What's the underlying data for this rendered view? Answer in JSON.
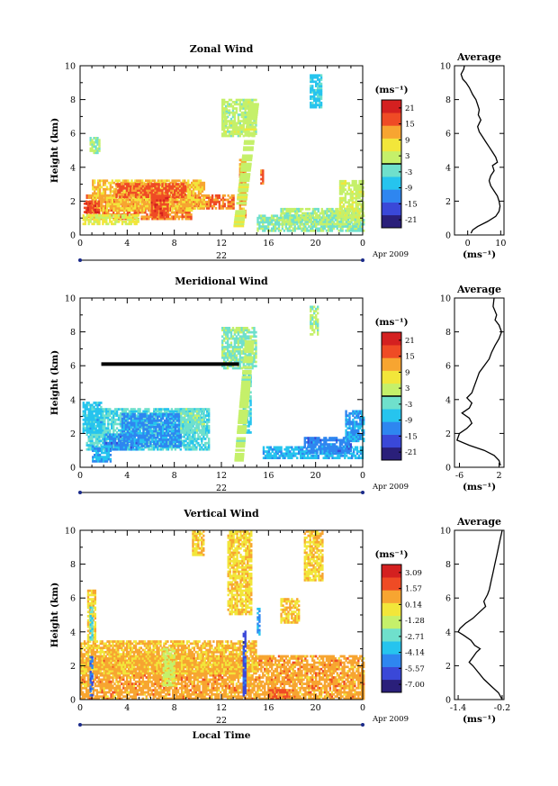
{
  "chart_data": [
    {
      "type": "heatmap",
      "title": "Zonal Wind",
      "ylabel": "Height (km)",
      "ylim": [
        0,
        10
      ],
      "yticks": [
        0,
        2,
        4,
        6,
        8,
        10
      ],
      "xtick_labels": [
        "0",
        "4",
        "8",
        "12",
        "16",
        "20",
        "0"
      ],
      "date_day": "22",
      "date_month_year": "Apr 2009",
      "colorbar": {
        "unit_label": "(ms⁻¹)",
        "range": [
          -24,
          24
        ],
        "ticks": [
          "21",
          "15",
          "9",
          "3",
          "-3",
          "-9",
          "-15",
          "-21"
        ],
        "zero_line": true
      },
      "profile": {
        "title": "Average",
        "xlabel": "(ms⁻¹)",
        "xlim": [
          -4,
          11
        ],
        "xtick_labels": [
          "0",
          "10"
        ],
        "xtick_values": [
          0,
          10
        ],
        "ylim": [
          0,
          10
        ],
        "yticks": [
          0,
          2,
          4,
          6,
          8,
          10
        ],
        "points": [
          [
            -1.0,
            10.0
          ],
          [
            -1.2,
            9.8
          ],
          [
            -2.0,
            9.5
          ],
          [
            -1.5,
            9.2
          ],
          [
            -0.5,
            9.0
          ],
          [
            0.5,
            8.7
          ],
          [
            1.5,
            8.3
          ],
          [
            2.5,
            8.0
          ],
          [
            3.0,
            7.7
          ],
          [
            3.5,
            7.4
          ],
          [
            3.2,
            7.1
          ],
          [
            4.0,
            6.8
          ],
          [
            3.0,
            6.4
          ],
          [
            3.5,
            6.1
          ],
          [
            4.5,
            5.8
          ],
          [
            5.5,
            5.5
          ],
          [
            6.5,
            5.2
          ],
          [
            7.5,
            4.9
          ],
          [
            8.5,
            4.6
          ],
          [
            9.0,
            4.3
          ],
          [
            7.5,
            4.1
          ],
          [
            8.0,
            3.8
          ],
          [
            7.0,
            3.5
          ],
          [
            6.5,
            3.2
          ],
          [
            7.0,
            2.9
          ],
          [
            8.0,
            2.6
          ],
          [
            9.0,
            2.3
          ],
          [
            9.5,
            2.0
          ],
          [
            9.8,
            1.7
          ],
          [
            9.5,
            1.4
          ],
          [
            8.5,
            1.1
          ],
          [
            6.0,
            0.8
          ],
          [
            3.0,
            0.5
          ],
          [
            1.5,
            0.3
          ],
          [
            1.0,
            0.1
          ]
        ]
      },
      "regions": [
        {
          "t0": 0.5,
          "t1": 13.0,
          "h0": 0.9,
          "h1": 2.3,
          "v": 14
        },
        {
          "t0": 1.0,
          "t1": 10.5,
          "h0": 1.4,
          "h1": 3.2,
          "v": 10
        },
        {
          "t0": 3.0,
          "t1": 9.0,
          "h0": 2.2,
          "h1": 3.0,
          "v": 16
        },
        {
          "t0": 0.2,
          "t1": 5.0,
          "h0": 0.6,
          "h1": 1.2,
          "v": 5
        },
        {
          "t0": 0.3,
          "t1": 1.5,
          "h0": 1.3,
          "h1": 2.0,
          "v": 18
        },
        {
          "t0": 6.0,
          "t1": 7.5,
          "h0": 1.0,
          "h1": 2.3,
          "v": 17
        },
        {
          "t0": 0.8,
          "t1": 1.6,
          "h0": 4.8,
          "h1": 5.8,
          "v": 0
        },
        {
          "t0": 12.0,
          "t1": 15.0,
          "h0": 5.8,
          "h1": 8.0,
          "v": 2
        },
        {
          "t0": 15.0,
          "t1": 24.0,
          "h0": 0.2,
          "h1": 1.2,
          "v": -1
        },
        {
          "t0": 17.0,
          "t1": 24.0,
          "h0": 0.6,
          "h1": 1.6,
          "v": 1
        },
        {
          "t0": 22.0,
          "t1": 24.0,
          "h0": 1.0,
          "h1": 3.2,
          "v": 3
        },
        {
          "t0": 19.5,
          "t1": 20.5,
          "h0": 7.5,
          "h1": 9.5,
          "v": -6
        },
        {
          "t0": 12.2,
          "t1": 12.5,
          "h0": 6.5,
          "h1": 7.4,
          "v": 2
        },
        {
          "t0": 13.5,
          "t1": 14.0,
          "h0": 1.0,
          "h1": 4.5,
          "v": 12
        },
        {
          "t0": 15.3,
          "t1": 15.6,
          "h0": 3.0,
          "h1": 3.8,
          "v": 15
        }
      ],
      "bands": [
        {
          "t0": 13.0,
          "h0": 0.5,
          "t1": 14.3,
          "h1": 7.8,
          "w": 0.9,
          "v": 3
        }
      ],
      "blank": [
        {
          "t0": 9.5,
          "t1": 13.0,
          "h0": 0.9,
          "h1": 1.4
        }
      ]
    },
    {
      "type": "heatmap",
      "title": "Meridional Wind",
      "ylabel": "Height (km)",
      "ylim": [
        0,
        10
      ],
      "yticks": [
        0,
        2,
        4,
        6,
        8,
        10
      ],
      "xtick_labels": [
        "0",
        "4",
        "8",
        "12",
        "16",
        "20",
        "0"
      ],
      "date_day": "22",
      "date_month_year": "Apr 2009",
      "colorbar": {
        "unit_label": "(ms⁻¹)",
        "range": [
          -24,
          24
        ],
        "ticks": [
          "21",
          "15",
          "9",
          "3",
          "-3",
          "-9",
          "-15",
          "-21"
        ],
        "zero_line": true
      },
      "profile": {
        "title": "Average",
        "xlabel": "(ms⁻¹)",
        "xlim": [
          -7,
          3
        ],
        "xtick_labels": [
          "-6",
          "2"
        ],
        "xtick_values": [
          -6,
          2
        ],
        "ylim": [
          0,
          10
        ],
        "yticks": [
          0,
          2,
          4,
          6,
          8,
          10
        ],
        "points": [
          [
            1.0,
            10.0
          ],
          [
            0.8,
            9.5
          ],
          [
            1.5,
            9.0
          ],
          [
            1.2,
            8.7
          ],
          [
            2.0,
            8.4
          ],
          [
            2.5,
            8.0
          ],
          [
            2.0,
            7.6
          ],
          [
            1.2,
            7.2
          ],
          [
            0.5,
            6.8
          ],
          [
            0.0,
            6.4
          ],
          [
            -1.0,
            6.0
          ],
          [
            -2.0,
            5.6
          ],
          [
            -2.5,
            5.2
          ],
          [
            -3.0,
            4.8
          ],
          [
            -3.5,
            4.4
          ],
          [
            -4.5,
            4.1
          ],
          [
            -3.5,
            3.8
          ],
          [
            -4.0,
            3.5
          ],
          [
            -5.5,
            3.2
          ],
          [
            -4.0,
            2.9
          ],
          [
            -3.5,
            2.6
          ],
          [
            -4.5,
            2.3
          ],
          [
            -6.0,
            2.0
          ],
          [
            -6.5,
            1.6
          ],
          [
            -4.0,
            1.3
          ],
          [
            -1.0,
            1.0
          ],
          [
            1.0,
            0.7
          ],
          [
            2.0,
            0.4
          ],
          [
            2.3,
            0.1
          ]
        ]
      },
      "regions": [
        {
          "t0": 0.5,
          "t1": 11.0,
          "h0": 1.0,
          "h1": 3.5,
          "v": -4
        },
        {
          "t0": 3.5,
          "t1": 8.5,
          "h0": 1.2,
          "h1": 3.2,
          "v": -11
        },
        {
          "t0": 2.0,
          "t1": 5.0,
          "h0": 1.0,
          "h1": 2.0,
          "v": -12
        },
        {
          "t0": 0.2,
          "t1": 1.8,
          "h0": 2.0,
          "h1": 3.8,
          "v": -7
        },
        {
          "t0": 1.0,
          "t1": 2.5,
          "h0": 0.3,
          "h1": 1.2,
          "v": -9
        },
        {
          "t0": 8.5,
          "t1": 10.5,
          "h0": 2.0,
          "h1": 3.4,
          "v": -2
        },
        {
          "t0": 12.0,
          "t1": 15.0,
          "h0": 5.8,
          "h1": 8.2,
          "v": -1
        },
        {
          "t0": 15.5,
          "t1": 24.0,
          "h0": 0.5,
          "h1": 1.2,
          "v": -8
        },
        {
          "t0": 19.0,
          "t1": 23.0,
          "h0": 0.8,
          "h1": 1.8,
          "v": -12
        },
        {
          "t0": 22.5,
          "t1": 24.0,
          "h0": 1.5,
          "h1": 3.3,
          "v": -10
        },
        {
          "t0": 19.5,
          "t1": 20.2,
          "h0": 7.8,
          "h1": 9.5,
          "v": 1
        },
        {
          "t0": 13.8,
          "t1": 14.5,
          "h0": 2.0,
          "h1": 5.5,
          "v": -5
        }
      ],
      "bands": [
        {
          "t0": 13.1,
          "h0": 0.5,
          "t1": 14.0,
          "h1": 7.5,
          "w": 0.8,
          "v": 2
        }
      ],
      "blank": [],
      "line": {
        "t0": 1.8,
        "t1": 13.5,
        "h": 6.1
      }
    },
    {
      "type": "heatmap",
      "title": "Vertical Wind",
      "ylabel": "Height (km)",
      "xlabel": "Local Time",
      "ylim": [
        0,
        10
      ],
      "yticks": [
        0,
        2,
        4,
        6,
        8,
        10
      ],
      "xtick_labels": [
        "0",
        "4",
        "8",
        "12",
        "16",
        "20",
        "0"
      ],
      "date_day": "22",
      "date_month_year": "Apr 2009",
      "colorbar": {
        "unit_label": "(ms⁻¹)",
        "range": [
          -7.8,
          3.8
        ],
        "ticks": [
          "3.09",
          "1.57",
          "0.14",
          "-1.28",
          "-2.71",
          "-4.14",
          "-5.57",
          "-7.00"
        ],
        "zero_line": false
      },
      "profile": {
        "title": "Average",
        "xlabel": "(ms⁻¹)",
        "xlim": [
          -1.5,
          -0.15
        ],
        "xtick_labels": [
          "-1.4",
          "-0.2"
        ],
        "xtick_values": [
          -1.4,
          -0.2
        ],
        "ylim": [
          0,
          10
        ],
        "yticks": [
          0,
          2,
          4,
          6,
          8,
          10
        ],
        "points": [
          [
            -0.2,
            10.0
          ],
          [
            -0.25,
            9.5
          ],
          [
            -0.3,
            9.0
          ],
          [
            -0.35,
            8.5
          ],
          [
            -0.4,
            8.0
          ],
          [
            -0.45,
            7.5
          ],
          [
            -0.5,
            7.0
          ],
          [
            -0.55,
            6.5
          ],
          [
            -0.6,
            6.2
          ],
          [
            -0.7,
            5.8
          ],
          [
            -0.65,
            5.5
          ],
          [
            -0.8,
            5.2
          ],
          [
            -1.0,
            4.8
          ],
          [
            -1.2,
            4.5
          ],
          [
            -1.35,
            4.2
          ],
          [
            -1.4,
            4.0
          ],
          [
            -1.25,
            3.8
          ],
          [
            -1.05,
            3.5
          ],
          [
            -0.95,
            3.2
          ],
          [
            -0.8,
            3.0
          ],
          [
            -0.9,
            2.8
          ],
          [
            -1.0,
            2.5
          ],
          [
            -1.1,
            2.2
          ],
          [
            -1.0,
            2.0
          ],
          [
            -0.85,
            1.6
          ],
          [
            -0.7,
            1.2
          ],
          [
            -0.5,
            0.8
          ],
          [
            -0.3,
            0.4
          ],
          [
            -0.2,
            0.0
          ]
        ]
      },
      "regions": [
        {
          "t0": 0.0,
          "t1": 24.0,
          "h0": 0.0,
          "h1": 2.6,
          "v": 0.9
        },
        {
          "t0": 0.0,
          "t1": 15.0,
          "h0": 1.5,
          "h1": 3.4,
          "v": 0.5
        },
        {
          "t0": 0.6,
          "t1": 1.3,
          "h0": 3.0,
          "h1": 6.5,
          "v": 0.0
        },
        {
          "t0": 12.5,
          "t1": 14.5,
          "h0": 5.0,
          "h1": 10.0,
          "v": 0.1
        },
        {
          "t0": 19.0,
          "t1": 20.5,
          "h0": 7.0,
          "h1": 10.0,
          "v": 0.2
        },
        {
          "t0": 9.5,
          "t1": 10.5,
          "h0": 8.5,
          "h1": 10.0,
          "v": 0.3
        },
        {
          "t0": 17.0,
          "t1": 18.5,
          "h0": 4.5,
          "h1": 6.0,
          "v": 0.3
        },
        {
          "t0": 7.0,
          "t1": 8.0,
          "h0": 0.8,
          "h1": 3.0,
          "v": -1.2
        },
        {
          "t0": 0.8,
          "t1": 1.1,
          "h0": 0.2,
          "h1": 2.5,
          "v": -5.5
        },
        {
          "t0": 0.8,
          "t1": 1.1,
          "h0": 3.5,
          "h1": 5.5,
          "v": -3.0
        },
        {
          "t0": 13.8,
          "t1": 14.1,
          "h0": 0.2,
          "h1": 4.0,
          "v": -6.0
        },
        {
          "t0": 15.0,
          "t1": 15.3,
          "h0": 3.8,
          "h1": 5.5,
          "v": -4.2
        },
        {
          "t0": 16.0,
          "t1": 17.5,
          "h0": 0.0,
          "h1": 0.6,
          "v": 1.8
        }
      ],
      "bands": [],
      "blank": []
    }
  ]
}
